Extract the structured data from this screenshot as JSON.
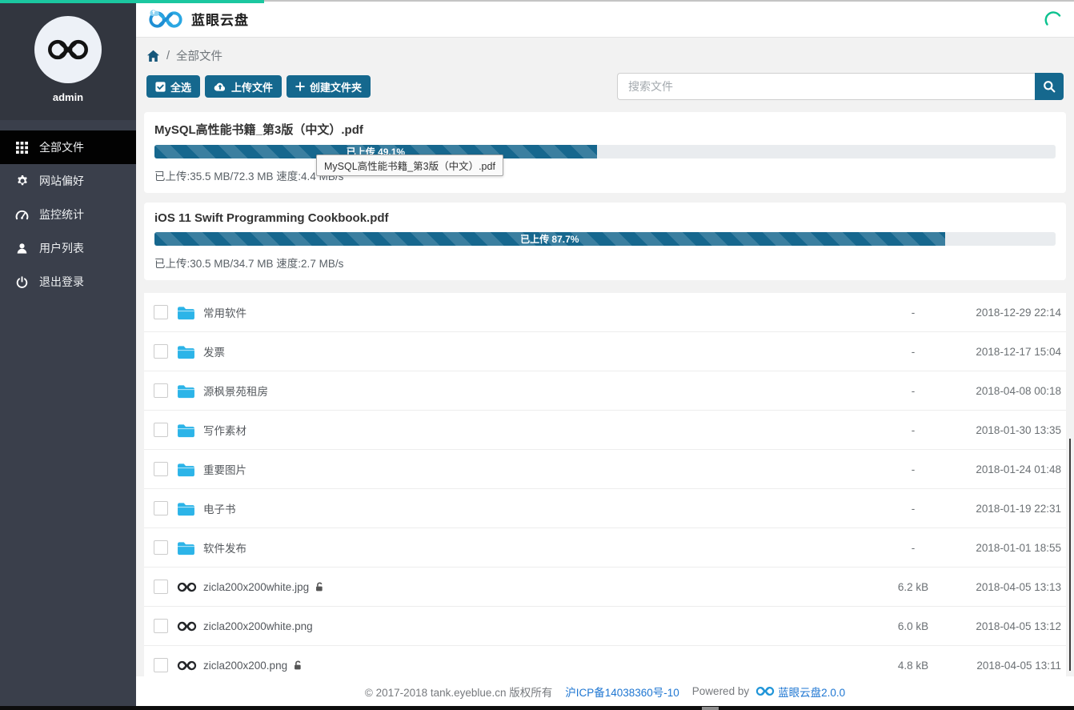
{
  "colors": {
    "loading_bar": "#1bc7a0",
    "primary_button": "#15688e",
    "progress_fill": "#16678e",
    "folder_icon": "#2cb4e8",
    "link": "#1e76d2",
    "sidebar_bg": "#3a3f4b",
    "sidebar_active_bg": "#020202"
  },
  "header": {
    "title": "蓝眼云盘",
    "logo_icon": "infinity-cloud-logo",
    "spinner_icon": "loading-spinner"
  },
  "sidebar": {
    "username": "admin",
    "items": [
      {
        "label": "全部文件",
        "icon": "grid",
        "active": true
      },
      {
        "label": "网站偏好",
        "icon": "gear",
        "active": false
      },
      {
        "label": "监控统计",
        "icon": "dashboard",
        "active": false
      },
      {
        "label": "用户列表",
        "icon": "user",
        "active": false
      },
      {
        "label": "退出登录",
        "icon": "power",
        "active": false
      }
    ]
  },
  "breadcrumb": {
    "home_icon": "home",
    "separator": "/",
    "current": "全部文件"
  },
  "toolbar": {
    "select_all": "全选",
    "upload": "上传文件",
    "create_folder": "创建文件夹",
    "search_placeholder": "搜索文件"
  },
  "uploads": [
    {
      "name": "MySQL高性能书籍_第3版（中文）.pdf",
      "percent": 49.1,
      "label": "已上传 49.1%",
      "detail": "已上传:35.5 MB/72.3 MB 速度:4.4 MB/s",
      "tooltip": "MySQL高性能书籍_第3版（中文）.pdf"
    },
    {
      "name": "iOS 11 Swift Programming Cookbook.pdf",
      "percent": 87.7,
      "label": "已上传 87.7%",
      "detail": "已上传:30.5 MB/34.7 MB 速度:2.7 MB/s"
    }
  ],
  "files": [
    {
      "name": "常用软件",
      "type": "folder",
      "locked": false,
      "size": "-",
      "date": "2018-12-29 22:14"
    },
    {
      "name": "发票",
      "type": "folder",
      "locked": false,
      "size": "-",
      "date": "2018-12-17 15:04"
    },
    {
      "name": "源枫景苑租房",
      "type": "folder",
      "locked": false,
      "size": "-",
      "date": "2018-04-08 00:18"
    },
    {
      "name": "写作素材",
      "type": "folder",
      "locked": false,
      "size": "-",
      "date": "2018-01-30 13:35"
    },
    {
      "name": "重要图片",
      "type": "folder",
      "locked": false,
      "size": "-",
      "date": "2018-01-24 01:48"
    },
    {
      "name": "电子书",
      "type": "folder",
      "locked": false,
      "size": "-",
      "date": "2018-01-19 22:31"
    },
    {
      "name": "软件发布",
      "type": "folder",
      "locked": false,
      "size": "-",
      "date": "2018-01-01 18:55"
    },
    {
      "name": "zicla200x200white.jpg",
      "type": "image",
      "locked": true,
      "size": "6.2 kB",
      "date": "2018-04-05 13:13"
    },
    {
      "name": "zicla200x200white.png",
      "type": "image",
      "locked": false,
      "size": "6.0 kB",
      "date": "2018-04-05 13:12"
    },
    {
      "name": "zicla200x200.png",
      "type": "image",
      "locked": true,
      "size": "4.8 kB",
      "date": "2018-04-05 13:11"
    }
  ],
  "footer": {
    "copyright": "© 2017-2018 tank.eyeblue.cn 版权所有",
    "icp": "沪ICP备14038360号-10",
    "powered_by": "Powered by",
    "version": "蓝眼云盘2.0.0"
  }
}
